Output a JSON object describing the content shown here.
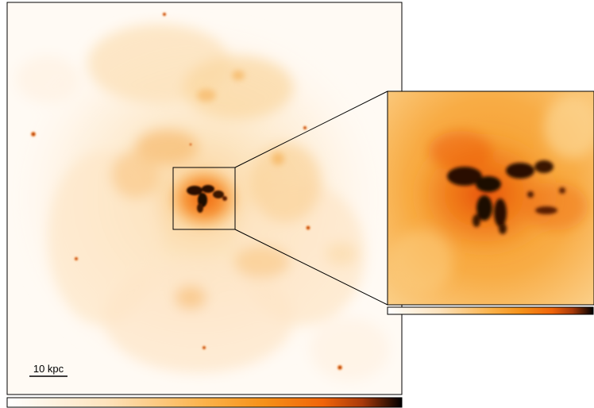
{
  "scale_bar": {
    "label": "10 kpc"
  },
  "colormap": {
    "stops": [
      "#ffffff",
      "#fde3bd",
      "#fbb24a",
      "#f59119",
      "#f0640a",
      "#a8390a",
      "#000000"
    ]
  },
  "palette": {
    "halo_light": "#fde9cc",
    "halo_mid": "#f9c77d",
    "halo_orange": "#f7a23c",
    "core_orange": "#f06a0e",
    "core_dark": "#1a0c08"
  }
}
